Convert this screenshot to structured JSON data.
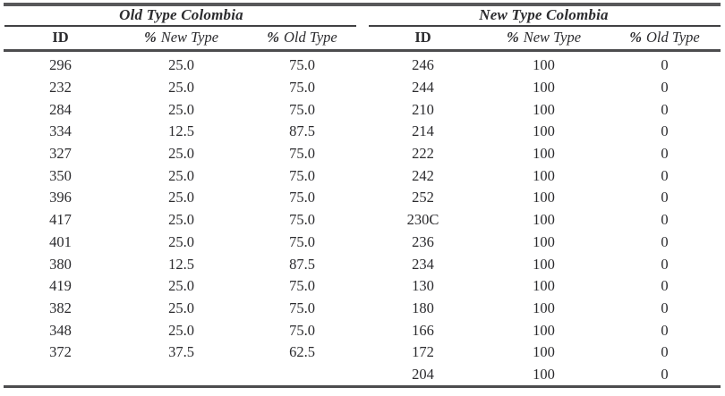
{
  "table": {
    "sections": [
      {
        "title": "Old Type Colombia",
        "columns": [
          {
            "sym": "",
            "label": "ID"
          },
          {
            "sym": "%",
            "label": "New Type"
          },
          {
            "sym": "%",
            "label": "Old Type"
          }
        ],
        "rows": [
          [
            "296",
            "25.0",
            "75.0"
          ],
          [
            "232",
            "25.0",
            "75.0"
          ],
          [
            "284",
            "25.0",
            "75.0"
          ],
          [
            "334",
            "12.5",
            "87.5"
          ],
          [
            "327",
            "25.0",
            "75.0"
          ],
          [
            "350",
            "25.0",
            "75.0"
          ],
          [
            "396",
            "25.0",
            "75.0"
          ],
          [
            "417",
            "25.0",
            "75.0"
          ],
          [
            "401",
            "25.0",
            "75.0"
          ],
          [
            "380",
            "12.5",
            "87.5"
          ],
          [
            "419",
            "25.0",
            "75.0"
          ],
          [
            "382",
            "25.0",
            "75.0"
          ],
          [
            "348",
            "25.0",
            "75.0"
          ],
          [
            "372",
            "37.5",
            "62.5"
          ]
        ]
      },
      {
        "title": "New Type Colombia",
        "columns": [
          {
            "sym": "",
            "label": "ID"
          },
          {
            "sym": "%",
            "label": "New Type"
          },
          {
            "sym": "%",
            "label": "Old Type"
          }
        ],
        "rows": [
          [
            "246",
            "100",
            "0"
          ],
          [
            "244",
            "100",
            "0"
          ],
          [
            "210",
            "100",
            "0"
          ],
          [
            "214",
            "100",
            "0"
          ],
          [
            "222",
            "100",
            "0"
          ],
          [
            "242",
            "100",
            "0"
          ],
          [
            "252",
            "100",
            "0"
          ],
          [
            "230C",
            "100",
            "0"
          ],
          [
            "236",
            "100",
            "0"
          ],
          [
            "234",
            "100",
            "0"
          ],
          [
            "130",
            "100",
            "0"
          ],
          [
            "180",
            "100",
            "0"
          ],
          [
            "166",
            "100",
            "0"
          ],
          [
            "172",
            "100",
            "0"
          ],
          [
            "204",
            "100",
            "0"
          ]
        ]
      }
    ]
  },
  "colors": {
    "background": "#ffffff",
    "text": "#2b2b2e",
    "rule": "#4c4c4e"
  }
}
